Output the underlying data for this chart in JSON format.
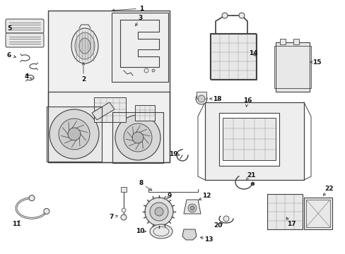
{
  "background_color": "#ffffff",
  "gray": "#404040",
  "lgray": "#888888",
  "shading": "#e8e8e8",
  "box_fill": "#f0f0f0"
}
